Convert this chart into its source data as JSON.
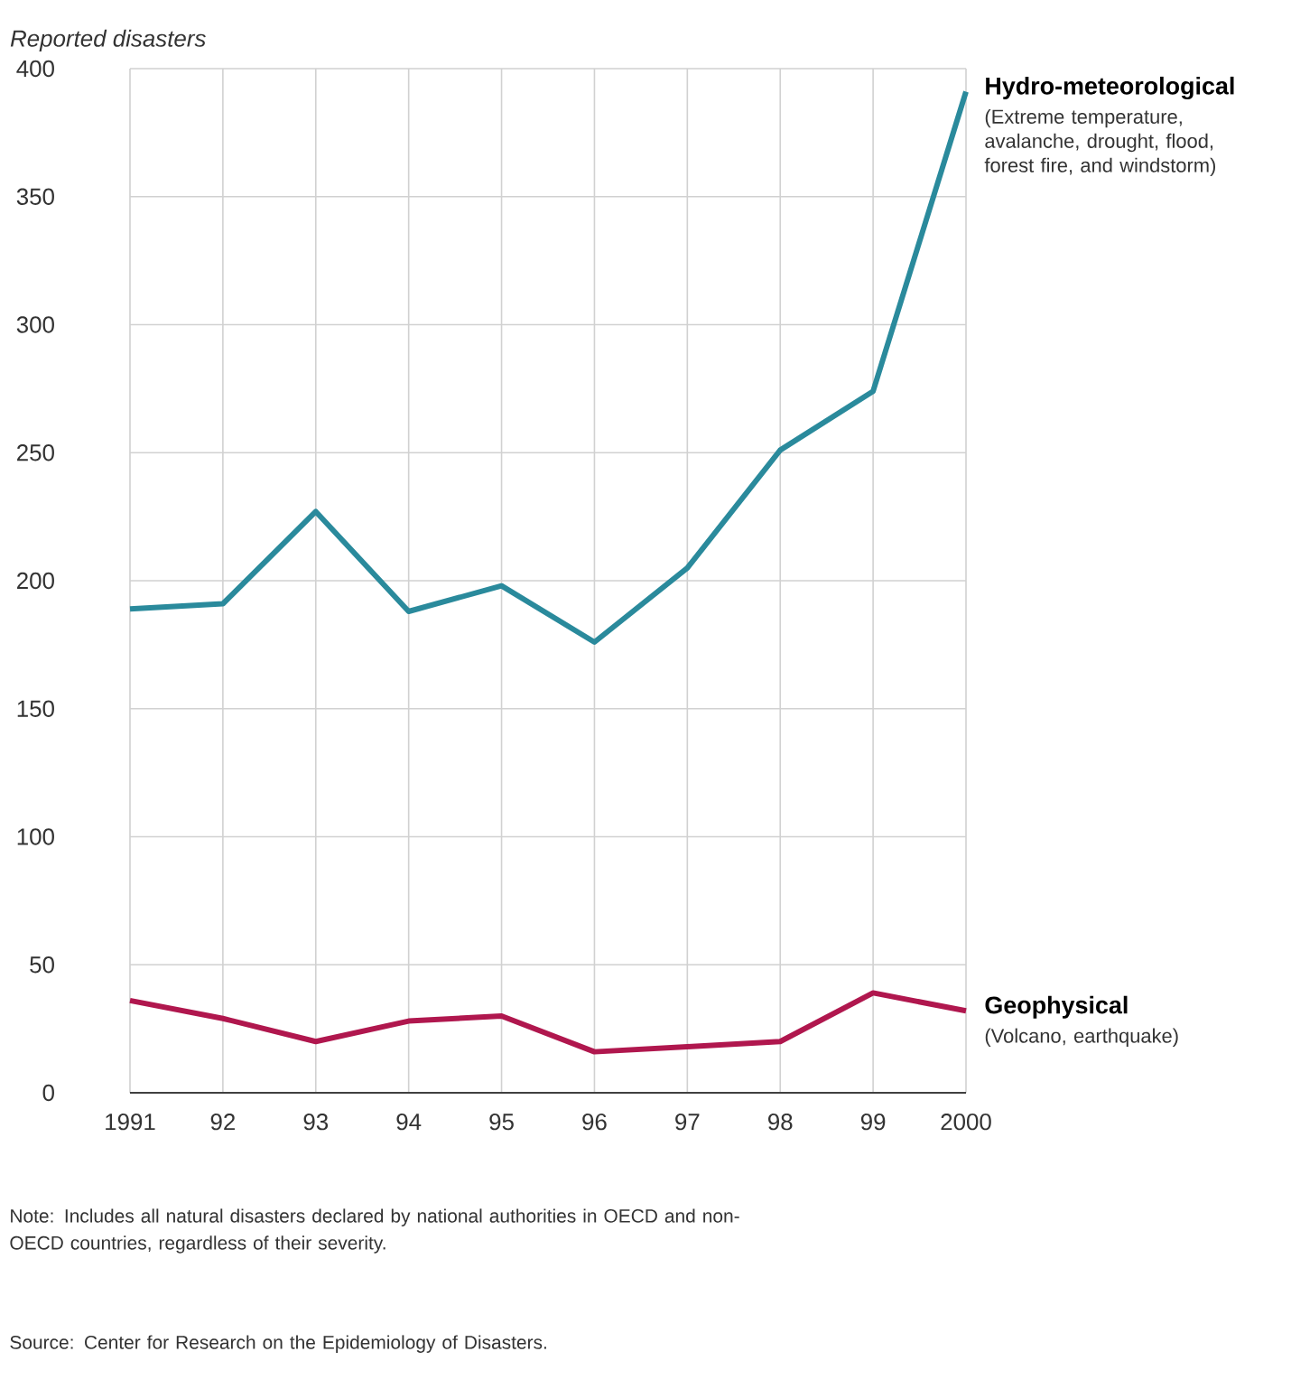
{
  "chart_data": {
    "type": "line",
    "ylabel": "Reported disasters",
    "categories": [
      "1991",
      "92",
      "93",
      "94",
      "95",
      "96",
      "97",
      "98",
      "99",
      "2000"
    ],
    "series": [
      {
        "name": "Hydro-meteorological",
        "color": "#2a8a9c",
        "values": [
          189,
          191,
          227,
          188,
          198,
          176,
          205,
          251,
          274,
          391
        ]
      },
      {
        "name": "Geophysical",
        "color": "#b0174e",
        "values": [
          36,
          29,
          20,
          28,
          30,
          16,
          18,
          20,
          39,
          32
        ]
      }
    ],
    "ylim": [
      0,
      400
    ],
    "yticks": [
      0,
      50,
      100,
      150,
      200,
      250,
      300,
      350,
      400
    ],
    "grid": true,
    "legend": false,
    "marker": "none",
    "line_style": "solid",
    "annotations": [
      "(Extreme temperature, avalanche, drought, flood, forest fire, and windstorm)",
      "(Volcano, earthquake)",
      "Note: Includes all natural disasters declared by national authorities in OECD and non-OECD countries, regardless of their severity.",
      "Source: Center for Research on the Epidemiology of Disasters."
    ]
  }
}
